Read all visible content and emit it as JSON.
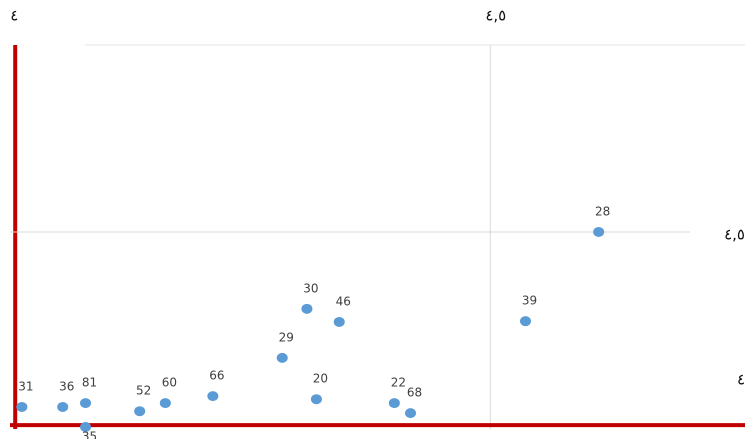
{
  "chart_data": {
    "type": "scatter",
    "x": [
      4.007,
      4.05,
      4.074,
      4.074,
      4.131,
      4.158,
      4.208,
      4.281,
      4.307,
      4.341,
      4.317,
      4.399,
      4.416,
      4.537,
      4.614
    ],
    "values": [
      4.047,
      4.047,
      4.057,
      3.995,
      4.036,
      4.057,
      4.075,
      4.174,
      4.301,
      4.267,
      4.067,
      4.057,
      4.031,
      4.269,
      4.5
    ],
    "labels": [
      "31",
      "36",
      "81",
      "35",
      "52",
      "60",
      "66",
      "29",
      "30",
      "46",
      "20",
      "22",
      "68",
      "39",
      "28"
    ],
    "color": "#5b9bd5",
    "axis_color": "#c00000",
    "grid": true,
    "xlim": [
      3.984,
      4.768
    ],
    "ylim": [
      3.964,
      4.984
    ],
    "xticks": [
      {
        "value": 4,
        "label": "٤"
      },
      {
        "value": 4.5,
        "label": "٤,٥"
      }
    ],
    "yticks": [
      {
        "value": 4,
        "label": "٤"
      },
      {
        "value": 4.5,
        "label": "٤,٥"
      }
    ]
  }
}
